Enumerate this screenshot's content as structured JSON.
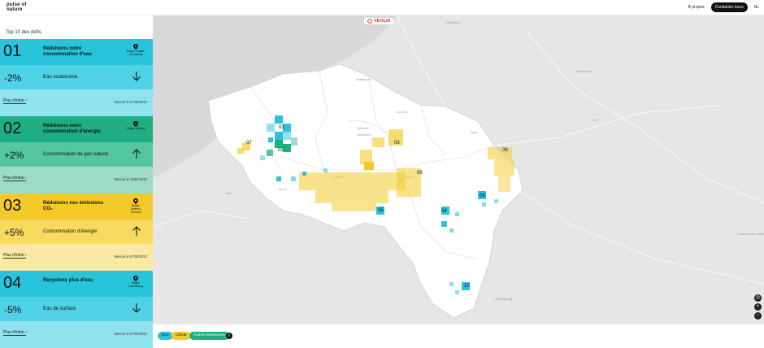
{
  "header": {
    "logo_line1": "pulse of",
    "logo_line2": "nature",
    "nav_about": "À propos",
    "nav_contact": "Contactez-nous",
    "nav_lang": "NL"
  },
  "sidebar": {
    "title": "Top 10 des défis",
    "cards": [
      {
        "number": "01",
        "title": "Réduisons notre consommation d'eau",
        "region_line1": "Région Flandre",
        "region_line2": "Occidentale",
        "percent": "-2%",
        "metric": "Eau souterraine",
        "trend": "down",
        "more": "Plus d'infos",
        "measured": "Mesuré le 07/08/2023"
      },
      {
        "number": "02",
        "title": "Réduisons notre consommation d'énergie",
        "region_line1": "Région Hainaut",
        "region_line2": "",
        "percent": "+2%",
        "metric": "Consommation de gaz naturel",
        "trend": "up",
        "more": "Plus d'infos",
        "measured": "Mesuré le 18/04/2023"
      },
      {
        "number": "03",
        "title": "Réduisons nos émissions CO₂",
        "region_line1": "Région",
        "region_line2": "Brabant",
        "region_line3": "Flamand",
        "percent": "+5%",
        "metric": "Consommation d'énergie",
        "trend": "up",
        "more": "Plus d'infos",
        "measured": "Mesuré le 07/08/2023"
      },
      {
        "number": "04",
        "title": "Recyclons plus d'eau",
        "region_line1": "Région",
        "region_line2": "Luxembourg",
        "percent": "-5%",
        "metric": "Eau de surface",
        "trend": "down",
        "more": "Plus d'infos",
        "measured": "Mesuré le 07/08/2023"
      }
    ]
  },
  "map": {
    "brand": "VEOLIA",
    "place_labels": [
      "Antwerpen",
      "Brussel",
      "Bruxelles",
      "Liège",
      "Leuven",
      "Namur",
      "Charleroi",
      "Mons",
      "Luxembourg",
      "Düsseldorf",
      "Köln",
      "Frankfurt am Main",
      "Rotterdam",
      "Lille"
    ],
    "hotspots": [
      "01",
      "02",
      "03",
      "04",
      "05",
      "06",
      "07",
      "08",
      "09",
      "10"
    ],
    "zoom_in": "+",
    "zoom_out": "−",
    "zoom_locate": "◎"
  },
  "legend": {
    "eau": "Eau",
    "climat": "Climat",
    "autres": "Autres ressources",
    "info": "i"
  },
  "colors": {
    "water": "#27c4dc",
    "climate": "#f3ca2a",
    "resources": "#1fae83"
  }
}
